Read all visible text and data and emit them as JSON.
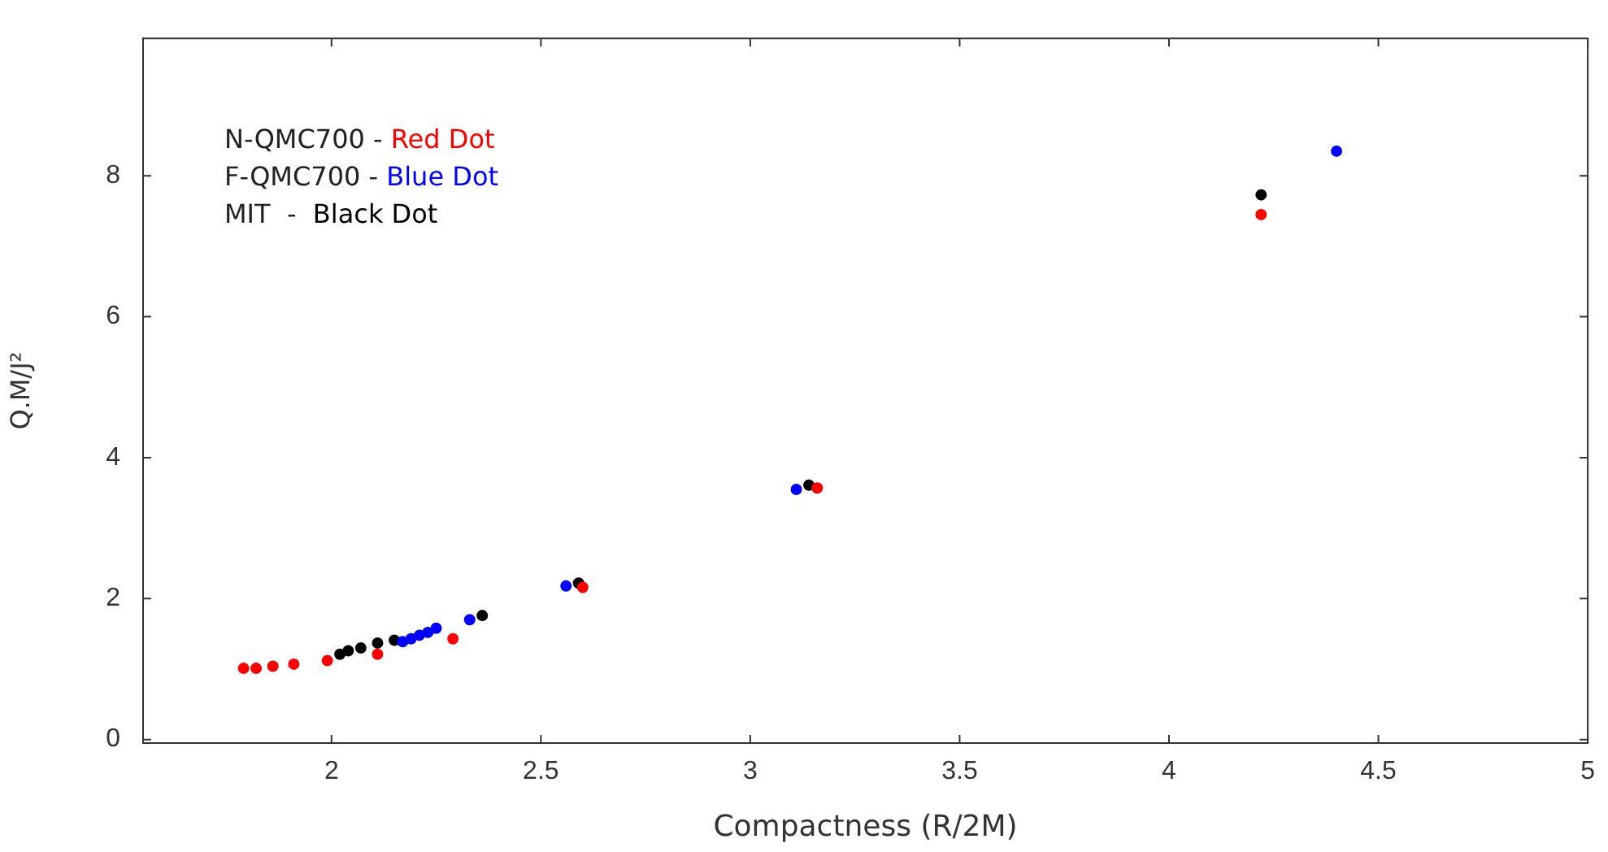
{
  "chart_data": {
    "type": "scatter",
    "xlabel": "Compactness (R/2M)",
    "ylabel": "Q.M/J²",
    "xlim": [
      1.55,
      5
    ],
    "xticks": [
      2,
      2.5,
      3,
      3.5,
      4,
      4.5,
      5
    ],
    "ylim": [
      -0.05,
      9.95
    ],
    "yticks": [
      0,
      2,
      4,
      6,
      8
    ],
    "grid": false,
    "marker": "circle",
    "annotations": [
      "N-QMC700 - Red Dot",
      "F-QMC700 - Blue Dot",
      "MIT  -  Black Dot"
    ],
    "series": [
      {
        "color": "#ff0000",
        "x": [
          1.79,
          1.82,
          1.86,
          1.91,
          1.99,
          2.11,
          2.29,
          2.6,
          3.16,
          4.22
        ],
        "values": [
          1.01,
          1.01,
          1.04,
          1.07,
          1.12,
          1.21,
          1.43,
          2.16,
          3.57,
          7.45
        ]
      },
      {
        "color": "#0000ff",
        "x": [
          2.17,
          2.19,
          2.21,
          2.23,
          2.25,
          2.33,
          2.56,
          3.11,
          4.4
        ],
        "values": [
          1.39,
          1.43,
          1.48,
          1.52,
          1.58,
          1.7,
          2.18,
          3.55,
          8.35
        ]
      },
      {
        "color": "#000000",
        "x": [
          2.02,
          2.04,
          2.07,
          2.11,
          2.15,
          2.23,
          2.36,
          2.59,
          3.14,
          4.22
        ],
        "values": [
          1.21,
          1.26,
          1.3,
          1.37,
          1.41,
          null,
          1.76,
          2.22,
          3.61,
          7.73
        ]
      }
    ]
  }
}
